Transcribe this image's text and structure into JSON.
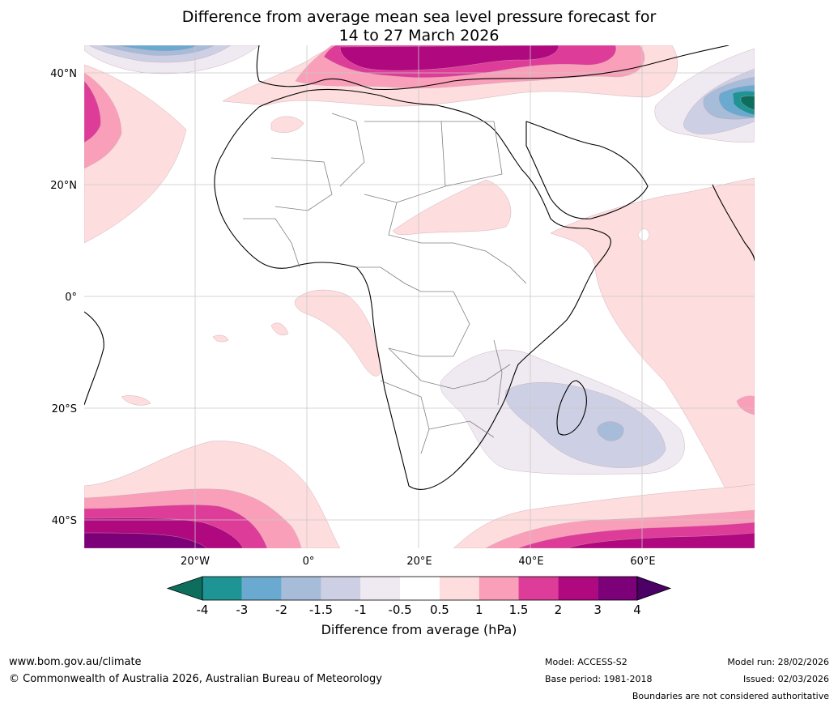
{
  "title": {
    "line1": "Difference from average mean sea level pressure forecast for",
    "line2": "14 to 27 March 2026"
  },
  "map": {
    "lat_labels": [
      "40°N",
      "20°N",
      "0°",
      "20°S",
      "40°S"
    ],
    "lon_labels": [
      "20°W",
      "0°",
      "20°E",
      "40°E",
      "60°E"
    ],
    "anomaly_fields": [
      {
        "name": "north-atlantic-low",
        "value_range": "-1.5 to -2"
      },
      {
        "name": "mediterranean-high",
        "value_range": "2 to 3"
      },
      {
        "name": "central-asia-low",
        "value_range": "-1 to -4"
      },
      {
        "name": "madagascar-low",
        "value_range": "-0.5 to -2"
      },
      {
        "name": "southern-ocean-high",
        "value_range": "1 to 4"
      }
    ]
  },
  "colorbar": {
    "ticks": [
      "-4",
      "-3",
      "-2",
      "-1.5",
      "-1",
      "-0.5",
      "0.5",
      "1",
      "1.5",
      "2",
      "3",
      "4"
    ],
    "colors": [
      "#0e6e5e",
      "#1f9494",
      "#6aa9d0",
      "#a7bcd8",
      "#cdd0e4",
      "#efe9f1",
      "#ffffff",
      "#fddddd",
      "#f99fb9",
      "#dd3c98",
      "#b0087e",
      "#7c0078",
      "#4a0064"
    ],
    "title": "Difference from average (hPa)"
  },
  "footer": {
    "website": "www.bom.gov.au/climate",
    "copyright": "© Commonwealth of Australia 2026, Australian Bureau of Meteorology",
    "model": "Model: ACCESS-S2",
    "base_period": "Base period: 1981-2018",
    "model_run": "Model run: 28/02/2026",
    "issued": "Issued: 02/03/2026",
    "disclaimer": "Boundaries are not considered authoritative"
  }
}
